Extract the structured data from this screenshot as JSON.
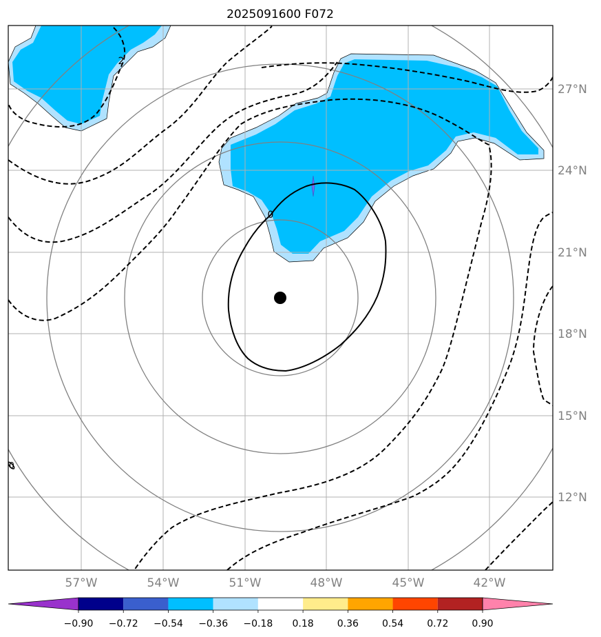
{
  "title": "2025091600 F072",
  "longitude_labels": [
    "57°W",
    "54°W",
    "51°W",
    "48°W",
    "45°W",
    "42°W"
  ],
  "latitude_labels": [
    "27°N",
    "24°N",
    "21°N",
    "18°N",
    "15°N",
    "12°N"
  ],
  "contour_labels": [
    "2",
    "0",
    "0"
  ],
  "storm_center": {
    "lon": -49.8,
    "lat": 19.3
  },
  "colorbar": {
    "ticks": [
      "−0.90",
      "−0.72",
      "−0.54",
      "−0.36",
      "−0.18",
      "0.18",
      "0.36",
      "0.54",
      "0.72",
      "0.90"
    ],
    "colors": [
      "#9932cc",
      "#00008b",
      "#3a5fcd",
      "#00bfff",
      "#b0e2ff",
      "#ffffff",
      "#ffec8b",
      "#ffa500",
      "#ff4500",
      "#b22222",
      "#ff82ab"
    ]
  },
  "colors": {
    "field_strong": "#00bfff",
    "field_weak": "#b0e2ff",
    "range_rings": "#808080",
    "gridlines": "#b0b0b0",
    "tick_labels": "#808080"
  }
}
